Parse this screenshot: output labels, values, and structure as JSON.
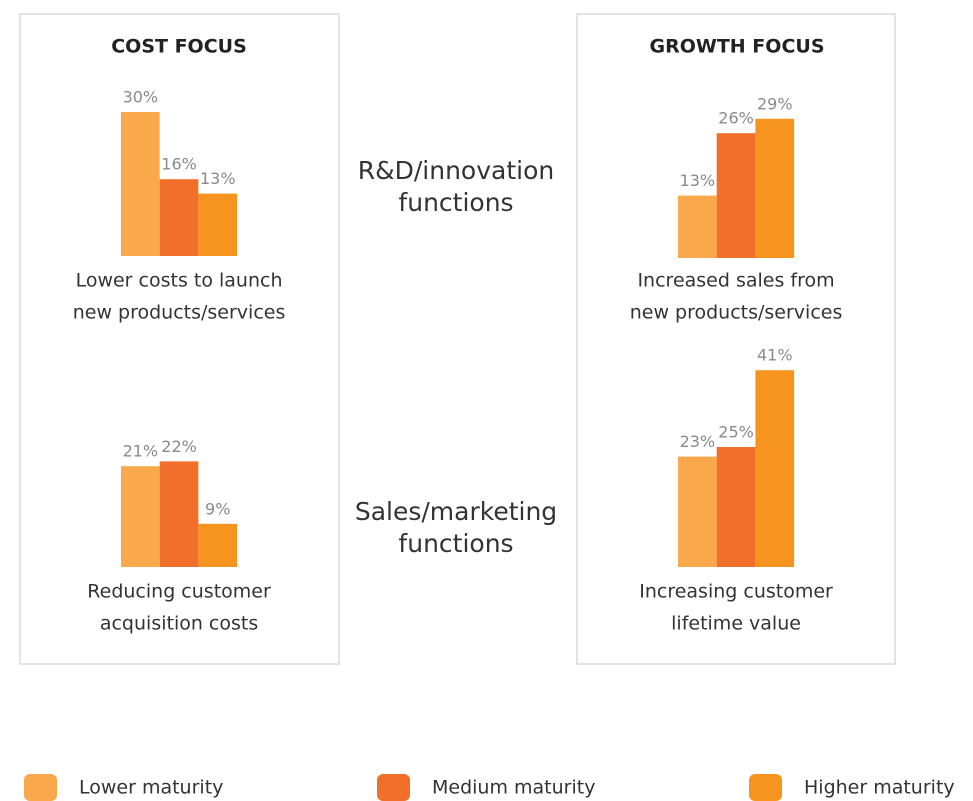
{
  "panels": [
    "COST FOCUS",
    "GROWTH FOCUS"
  ],
  "rows": [
    [
      "R&D/innovation",
      "functions"
    ],
    [
      "Sales/marketing",
      "functions"
    ]
  ],
  "legend": [
    {
      "name": "Lower maturity",
      "color": "#f9a94b"
    },
    {
      "name": "Medium maturity",
      "color": "#f26e2b"
    },
    {
      "name": "Higher maturity",
      "color": "#f7941f"
    }
  ],
  "chart_data": [
    {
      "type": "bar",
      "title": [
        "Lower costs to launch",
        "new products/services"
      ],
      "values": [
        30,
        16,
        13
      ],
      "value_labels": [
        "30%",
        "16%",
        "13%"
      ]
    },
    {
      "type": "bar",
      "title": [
        "Reducing customer",
        "acquisition costs"
      ],
      "values": [
        21,
        22,
        9
      ],
      "value_labels": [
        "21%",
        "22%",
        "9%"
      ]
    },
    {
      "type": "bar",
      "title": [
        "Increased sales from",
        "new products/services"
      ],
      "values": [
        13,
        26,
        29
      ],
      "value_labels": [
        "13%",
        "26%",
        "29%"
      ]
    },
    {
      "type": "bar",
      "title": [
        "Increasing customer",
        "lifetime value"
      ],
      "values": [
        23,
        25,
        41
      ],
      "value_labels": [
        "23%",
        "25%",
        "41%"
      ]
    }
  ]
}
